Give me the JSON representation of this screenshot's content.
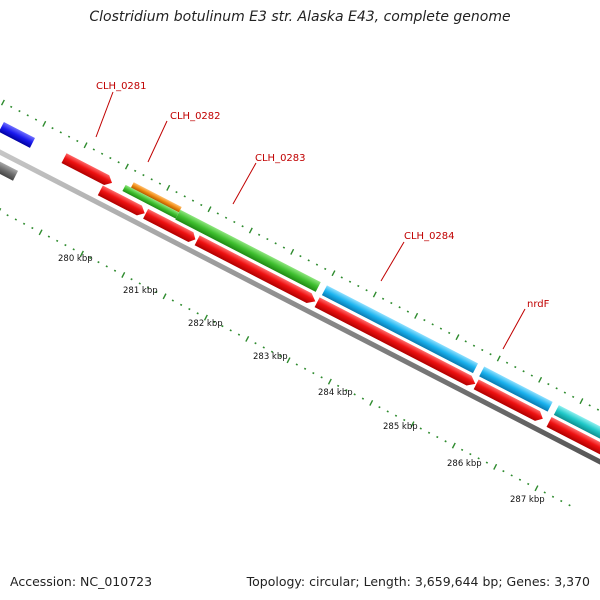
{
  "title": "Clostridium botulinum E3 str. Alaska E43, complete genome",
  "footer": {
    "accession": "Accession: NC_010723",
    "topology": "Topology: circular; Length: 3,659,644 bp; Genes: 3,370"
  },
  "colors": {
    "backbone": "#8c8c8c",
    "tick": "#2e8b2e",
    "cds": "#ee1111",
    "label": "#c00000",
    "blue": "#1a1aee",
    "gray": "#6e6e6e",
    "orange": "#f08a10",
    "green": "#3fbf2f",
    "skyblue": "#1ab2ee",
    "teal": "#1fc8c8"
  },
  "ruler": {
    "kbp_labels": [
      "280 kbp",
      "281 kbp",
      "282 kbp",
      "283 kbp",
      "284 kbp",
      "285 kbp",
      "286 kbp",
      "287 kbp"
    ]
  },
  "gene_labels": [
    "CLH_0281",
    "CLH_0282",
    "CLH_0283",
    "CLH_0284",
    "nrdF"
  ]
}
